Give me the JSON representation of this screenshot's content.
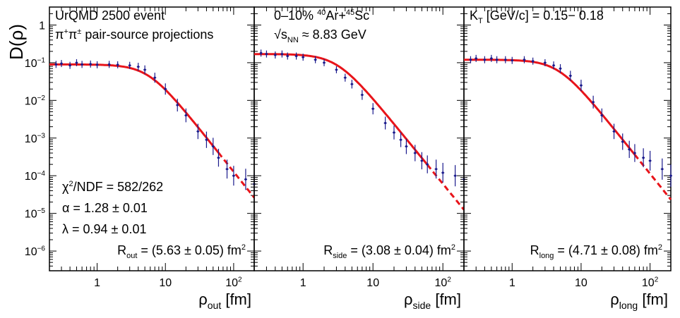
{
  "chart_data": {
    "type": "scatter",
    "y_axis_label": "D(ρ)",
    "y_log": true,
    "x_log": true,
    "ylim": [
      3e-07,
      3
    ],
    "xlim": [
      0.2,
      200
    ],
    "y_tick_labels": [
      {
        "base": "10",
        "exp": "−6",
        "value": 1e-06
      },
      {
        "base": "10",
        "exp": "−5",
        "value": 1e-05
      },
      {
        "base": "10",
        "exp": "−4",
        "value": 0.0001
      },
      {
        "base": "10",
        "exp": "−3",
        "value": 0.001
      },
      {
        "base": "10",
        "exp": "−2",
        "value": 0.01
      },
      {
        "base": "10",
        "exp": "−1",
        "value": 0.1
      },
      {
        "base": "1",
        "exp": "",
        "value": 1
      }
    ],
    "x_tick_labels": [
      {
        "base": "1",
        "exp": "",
        "value": 1
      },
      {
        "base": "10",
        "exp": "",
        "value": 10
      },
      {
        "base": "10",
        "exp": "2",
        "value": 100
      }
    ],
    "data_color": "#1a1a8c",
    "fit_color": "#e8141a",
    "panels": [
      {
        "id": "out",
        "xlabel_main": "ρ",
        "xlabel_sub": "out",
        "xlabel_unit": "[fm]",
        "lines": [
          [
            {
              "t": "UrQMD 2500 event"
            }
          ],
          [
            {
              "t": "π"
            },
            {
              "t": "+",
              "sup": true
            },
            {
              "t": "π"
            },
            {
              "t": "±",
              "sup": true
            },
            {
              "t": " pair-source projections"
            }
          ]
        ],
        "stats": [
          [
            {
              "t": "χ"
            },
            {
              "t": "2",
              "sup": true
            },
            {
              "t": "/NDF = 582/262"
            }
          ],
          [
            {
              "t": "α = 1.28 ± 0.01"
            }
          ],
          [
            {
              "t": "λ = 0.94 ± 0.01"
            }
          ]
        ],
        "radius": [
          {
            "t": "R"
          },
          {
            "t": "out",
            "sub": true
          },
          {
            "t": " = (5.63 ± 0.05) fm"
          },
          {
            "t": "2",
            "sup": true
          }
        ],
        "fit": {
          "R": 5.63,
          "alpha": 1.28,
          "norm": 0.09,
          "fit_end": 60
        },
        "points": [
          [
            0.25,
            0.09
          ],
          [
            0.3,
            0.095
          ],
          [
            0.4,
            0.085
          ],
          [
            0.5,
            0.1
          ],
          [
            0.6,
            0.09
          ],
          [
            0.8,
            0.092
          ],
          [
            1.0,
            0.088
          ],
          [
            1.5,
            0.09
          ],
          [
            2.0,
            0.088
          ],
          [
            3.0,
            0.085
          ],
          [
            4.0,
            0.078
          ],
          [
            5.0,
            0.065
          ],
          [
            7.0,
            0.04
          ],
          [
            10,
            0.02
          ],
          [
            15,
            0.0075
          ],
          [
            20,
            0.004
          ],
          [
            30,
            0.0015
          ],
          [
            40,
            0.0009
          ],
          [
            50,
            0.0006
          ],
          [
            60,
            0.0003
          ],
          [
            80,
            0.00015
          ],
          [
            100,
            0.0001
          ],
          [
            150,
            8e-05
          ],
          [
            200,
            6e-05
          ]
        ]
      },
      {
        "id": "side",
        "xlabel_main": "ρ",
        "xlabel_sub": "side",
        "xlabel_unit": "[fm]",
        "lines": [
          [
            {
              "t": "0–10% "
            },
            {
              "t": "40",
              "sup": true
            },
            {
              "t": "Ar+"
            },
            {
              "t": "45",
              "sup": true
            },
            {
              "t": "Sc"
            }
          ],
          [
            {
              "t": "s",
              "sqrt": true
            },
            {
              "t": "NN",
              "sub": true
            },
            {
              "t": " ≈ 8.83 GeV"
            }
          ]
        ],
        "stats": [],
        "radius": [
          {
            "t": "R"
          },
          {
            "t": "side",
            "sub": true
          },
          {
            "t": " = (3.08 ± 0.04) fm"
          },
          {
            "t": "2",
            "sup": true
          }
        ],
        "fit": {
          "R": 3.08,
          "alpha": 1.28,
          "norm": 0.17,
          "fit_end": 60
        },
        "points": [
          [
            0.25,
            0.18
          ],
          [
            0.3,
            0.17
          ],
          [
            0.4,
            0.16
          ],
          [
            0.5,
            0.17
          ],
          [
            0.6,
            0.15
          ],
          [
            0.8,
            0.15
          ],
          [
            1.0,
            0.14
          ],
          [
            1.5,
            0.12
          ],
          [
            2.0,
            0.1
          ],
          [
            3.0,
            0.065
          ],
          [
            4.0,
            0.04
          ],
          [
            5.0,
            0.027
          ],
          [
            7.0,
            0.014
          ],
          [
            10,
            0.006
          ],
          [
            15,
            0.0025
          ],
          [
            20,
            0.0014
          ],
          [
            25,
            0.0009
          ],
          [
            30,
            0.0006
          ],
          [
            40,
            0.0004
          ],
          [
            50,
            0.00025
          ],
          [
            60,
            0.0002
          ],
          [
            80,
            0.00015
          ],
          [
            100,
            0.00012
          ],
          [
            150,
            0.0001
          ],
          [
            200,
            8e-05
          ]
        ]
      },
      {
        "id": "long",
        "xlabel_main": "ρ",
        "xlabel_sub": "long",
        "xlabel_unit": "[fm]",
        "lines": [
          [
            {
              "t": "K"
            },
            {
              "t": "T",
              "sub": true
            },
            {
              "t": " [GeV/c] = 0.15− 0.18"
            }
          ]
        ],
        "stats": [],
        "radius": [
          {
            "t": "R"
          },
          {
            "t": "long",
            "sub": true
          },
          {
            "t": " = (4.71 ± 0.08) fm"
          },
          {
            "t": "2",
            "sup": true
          }
        ],
        "fit": {
          "R": 4.71,
          "alpha": 1.28,
          "norm": 0.12,
          "fit_end": 60
        },
        "points": [
          [
            0.25,
            0.12
          ],
          [
            0.3,
            0.13
          ],
          [
            0.4,
            0.12
          ],
          [
            0.5,
            0.13
          ],
          [
            0.6,
            0.12
          ],
          [
            0.8,
            0.12
          ],
          [
            1.0,
            0.115
          ],
          [
            1.5,
            0.12
          ],
          [
            2.0,
            0.11
          ],
          [
            3.0,
            0.1
          ],
          [
            4.0,
            0.085
          ],
          [
            5.0,
            0.07
          ],
          [
            7.0,
            0.045
          ],
          [
            10,
            0.025
          ],
          [
            15,
            0.009
          ],
          [
            20,
            0.004
          ],
          [
            30,
            0.0015
          ],
          [
            40,
            0.0008
          ],
          [
            50,
            0.0005
          ],
          [
            60,
            0.0004
          ],
          [
            80,
            0.0003
          ],
          [
            100,
            0.00025
          ],
          [
            150,
            0.00015
          ],
          [
            200,
            0.0001
          ]
        ]
      }
    ]
  }
}
